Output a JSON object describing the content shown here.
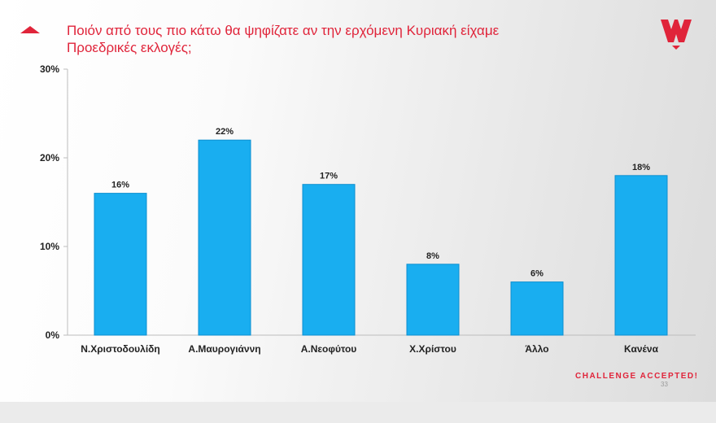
{
  "slide": {
    "title": "Ποιόν από τους πιο κάτω θα ψηφίζατε αν την ερχόμενη Κυριακή είχαμε Προεδρικές εκλογές;",
    "tagline": "CHALLENGE ACCEPTED!",
    "page_number": "33"
  },
  "colors": {
    "accent": "#e0243a",
    "bar": "#19aef0",
    "bar_edge": "#0d8fd0"
  },
  "icons": [
    "brand-logo-icon",
    "title-triangle-icon"
  ],
  "chart_data": {
    "type": "bar",
    "categories": [
      "Ν.Χριστοδουλίδη",
      "Α.Μαυρογιάννη",
      "Α.Νεοφύτου",
      "Χ.Χρίστου",
      "Άλλο",
      "Κανένα"
    ],
    "values": [
      16,
      22,
      17,
      8,
      6,
      18
    ],
    "data_labels": [
      "16%",
      "22%",
      "17%",
      "8%",
      "6%",
      "18%"
    ],
    "y_ticks": [
      0,
      10,
      20,
      30
    ],
    "y_tick_labels": [
      "0%",
      "10%",
      "20%",
      "30%"
    ],
    "ylim": [
      0,
      30
    ],
    "grid": false
  }
}
